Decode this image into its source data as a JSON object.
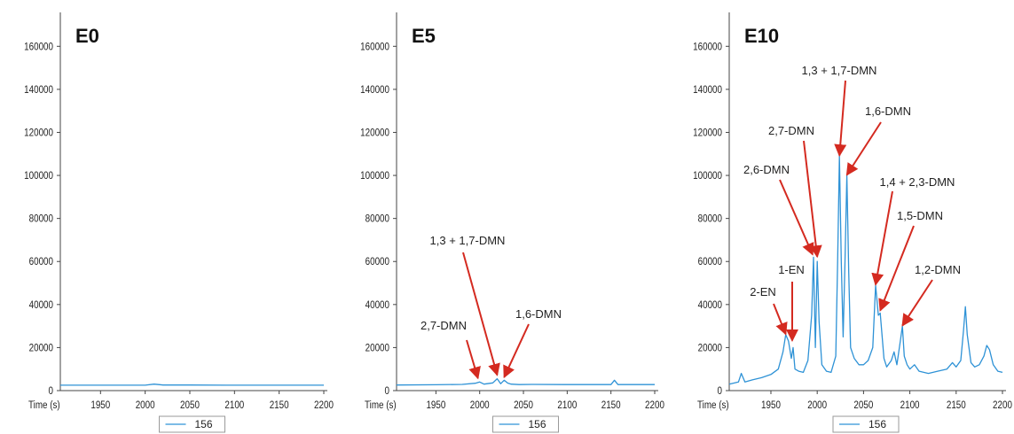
{
  "figure": {
    "background": "#ffffff"
  },
  "style": {
    "series_color": "#2e92d6",
    "arrow_color": "#d42a20"
  },
  "chart_data": [
    {
      "type": "line",
      "title": "E0",
      "xlabel": "Time (s)",
      "ylabel": "",
      "xlim": [
        1905,
        2200
      ],
      "ylim": [
        0,
        170000
      ],
      "x_ticks": [
        1950,
        2000,
        2050,
        2100,
        2150,
        2200
      ],
      "y_ticks": [
        0,
        20000,
        40000,
        60000,
        80000,
        100000,
        120000,
        140000,
        160000
      ],
      "legend": {
        "position": "bottom-center",
        "entries": [
          "156"
        ]
      },
      "series": [
        {
          "name": "156",
          "x": [
            1905,
            1950,
            2000,
            2010,
            2020,
            2050,
            2100,
            2150,
            2200
          ],
          "y": [
            2500,
            2500,
            2500,
            3000,
            2600,
            2600,
            2500,
            2500,
            2500
          ]
        }
      ],
      "annotations": []
    },
    {
      "type": "line",
      "title": "E5",
      "xlabel": "Time (s)",
      "ylabel": "",
      "xlim": [
        1905,
        2200
      ],
      "ylim": [
        0,
        170000
      ],
      "x_ticks": [
        1950,
        2000,
        2050,
        2100,
        2150,
        2200
      ],
      "y_ticks": [
        0,
        20000,
        40000,
        60000,
        80000,
        100000,
        120000,
        140000,
        160000
      ],
      "legend": {
        "position": "bottom-center",
        "entries": [
          "156"
        ]
      },
      "series": [
        {
          "name": "156",
          "x": [
            1905,
            1950,
            1980,
            1995,
            2000,
            2005,
            2015,
            2020,
            2024,
            2028,
            2032,
            2036,
            2045,
            2060,
            2100,
            2150,
            2154,
            2158,
            2200
          ],
          "y": [
            2600,
            2700,
            2900,
            3400,
            4000,
            3000,
            3600,
            5500,
            3200,
            4800,
            3500,
            3000,
            2800,
            2900,
            2800,
            2800,
            4800,
            2800,
            2800
          ]
        }
      ],
      "annotations": [
        {
          "label": "2,7-DMN",
          "x": 1998,
          "y": 4500
        },
        {
          "label": "1,3 + 1,7-DMN",
          "x": 2020,
          "y": 6000
        },
        {
          "label": "1,6-DMN",
          "x": 2028,
          "y": 5000
        }
      ]
    },
    {
      "type": "line",
      "title": "E10",
      "xlabel": "Time (s)",
      "ylabel": "",
      "xlim": [
        1905,
        2200
      ],
      "ylim": [
        0,
        170000
      ],
      "x_ticks": [
        1950,
        2000,
        2050,
        2100,
        2150,
        2200
      ],
      "y_ticks": [
        0,
        20000,
        40000,
        60000,
        80000,
        100000,
        120000,
        140000,
        160000
      ],
      "legend": {
        "position": "bottom-center",
        "entries": [
          "156"
        ]
      },
      "series": [
        {
          "name": "156",
          "x": [
            1905,
            1910,
            1915,
            1918,
            1922,
            1930,
            1940,
            1950,
            1958,
            1963,
            1966,
            1969,
            1972,
            1974,
            1976,
            1980,
            1985,
            1990,
            1994,
            1996,
            1998,
            2000,
            2002,
            2005,
            2010,
            2015,
            2020,
            2022,
            2024,
            2026,
            2028,
            2030,
            2032,
            2034,
            2036,
            2040,
            2045,
            2050,
            2055,
            2060,
            2063,
            2066,
            2068,
            2072,
            2075,
            2080,
            2083,
            2086,
            2090,
            2092,
            2094,
            2097,
            2100,
            2105,
            2110,
            2120,
            2130,
            2140,
            2146,
            2150,
            2155,
            2158,
            2160,
            2162,
            2166,
            2170,
            2175,
            2180,
            2183,
            2186,
            2190,
            2195,
            2200
          ],
          "y": [
            3000,
            3500,
            4000,
            8000,
            4000,
            5000,
            6000,
            7500,
            10000,
            18000,
            26000,
            23000,
            15000,
            20000,
            10000,
            9000,
            8500,
            14000,
            35000,
            62000,
            20000,
            60000,
            32000,
            12000,
            9000,
            8500,
            16000,
            60000,
            109000,
            60000,
            25000,
            60000,
            100000,
            55000,
            20000,
            15000,
            12000,
            12000,
            14000,
            20000,
            49000,
            35000,
            36000,
            15000,
            11000,
            14000,
            18000,
            12000,
            24000,
            30000,
            16000,
            12000,
            10000,
            12000,
            9000,
            8000,
            9000,
            10000,
            13000,
            11000,
            14000,
            28000,
            39000,
            26000,
            13000,
            11000,
            12000,
            16000,
            21000,
            19000,
            12000,
            9000,
            8500
          ]
        }
      ],
      "annotations": [
        {
          "label": "2-EN",
          "x": 1966,
          "y": 25000
        },
        {
          "label": "1-EN",
          "x": 1973,
          "y": 22000
        },
        {
          "label": "2,6-DMN",
          "x": 1995,
          "y": 62000
        },
        {
          "label": "2,7-DMN",
          "x": 2000,
          "y": 61000
        },
        {
          "label": "1,3 + 1,7-DMN",
          "x": 2024,
          "y": 108000
        },
        {
          "label": "1,6-DMN",
          "x": 2032,
          "y": 99000
        },
        {
          "label": "1,4 + 2,3-DMN",
          "x": 2063,
          "y": 48000
        },
        {
          "label": "1,5-DMN",
          "x": 2068,
          "y": 36000
        },
        {
          "label": "1,2-DMN",
          "x": 2092,
          "y": 29000
        }
      ]
    }
  ]
}
